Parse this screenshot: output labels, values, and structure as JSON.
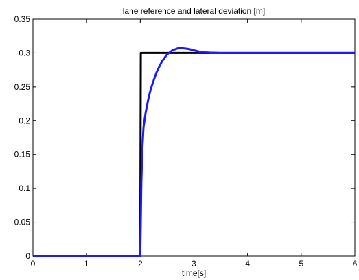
{
  "chart_data": {
    "type": "line",
    "title": "lane reference and lateral deviation [m]",
    "xlabel": "time[s]",
    "ylabel": "",
    "xlim": [
      0,
      6
    ],
    "ylim": [
      0,
      0.35
    ],
    "xticks": [
      "0",
      "1",
      "2",
      "3",
      "4",
      "5",
      "6"
    ],
    "yticks": [
      "0",
      "0.05",
      "0.1",
      "0.15",
      "0.2",
      "0.25",
      "0.3",
      "0.35"
    ],
    "grid": false,
    "series": [
      {
        "color": "#000000",
        "x": [
          0,
          1.99,
          2.0,
          2.01,
          3,
          4,
          5,
          6
        ],
        "y": [
          0,
          0,
          0,
          0.3,
          0.3,
          0.3,
          0.3,
          0.3
        ]
      },
      {
        "color": "#1a1aff",
        "x": [
          0,
          1.99,
          2.0,
          2.02,
          2.04,
          2.06,
          2.1,
          2.15,
          2.2,
          2.3,
          2.4,
          2.5,
          2.6,
          2.7,
          2.8,
          2.9,
          3.0,
          3.1,
          3.2,
          3.3,
          3.5,
          4,
          5,
          6
        ],
        "y": [
          0,
          0,
          0,
          0.11,
          0.16,
          0.19,
          0.212,
          0.232,
          0.248,
          0.271,
          0.287,
          0.298,
          0.304,
          0.307,
          0.307,
          0.306,
          0.304,
          0.302,
          0.301,
          0.3005,
          0.3,
          0.3,
          0.3,
          0.3
        ]
      }
    ]
  }
}
